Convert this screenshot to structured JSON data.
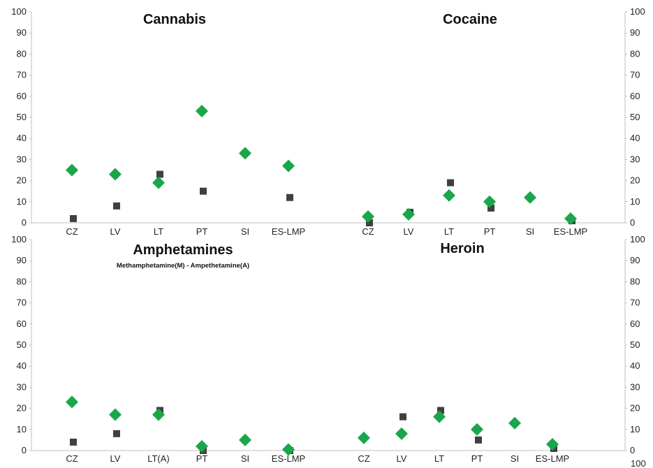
{
  "colors": {
    "series_diamond": "#1aa64a",
    "series_square": "#404040"
  },
  "chart_data": [
    {
      "type": "scatter",
      "title": "Cannabis",
      "subtitle": "",
      "categories": [
        "CZ",
        "LV",
        "LT",
        "PT",
        "SI",
        "ES-LMP"
      ],
      "ylim": [
        0,
        100
      ],
      "yticks": [
        0,
        10,
        20,
        30,
        40,
        50,
        60,
        70,
        80,
        90,
        100
      ],
      "axis_side": "left",
      "grid": false,
      "series": [
        {
          "marker": "diamond",
          "values": [
            25,
            23,
            19,
            53,
            33,
            27
          ]
        },
        {
          "marker": "square",
          "values": [
            2,
            8,
            23,
            15,
            null,
            12
          ]
        }
      ]
    },
    {
      "type": "scatter",
      "title": "Cocaine",
      "subtitle": "",
      "categories": [
        "CZ",
        "LV",
        "LT",
        "PT",
        "SI",
        "ES-LMP"
      ],
      "ylim": [
        0,
        100
      ],
      "yticks": [
        0,
        10,
        20,
        30,
        40,
        50,
        60,
        70,
        80,
        90,
        100
      ],
      "axis_side": "right",
      "grid": false,
      "series": [
        {
          "marker": "diamond",
          "values": [
            3,
            4,
            13,
            10,
            12,
            2
          ]
        },
        {
          "marker": "square",
          "values": [
            0,
            5,
            19,
            7,
            null,
            1
          ]
        }
      ]
    },
    {
      "type": "scatter",
      "title": "Amphetamines",
      "subtitle": "Methamphetamine(M) - Ampethetamine(A)",
      "categories": [
        "CZ",
        "LV",
        "LT(A)",
        "PT",
        "SI",
        "ES-LMP"
      ],
      "ylim": [
        0,
        100
      ],
      "yticks": [
        0,
        10,
        20,
        30,
        40,
        50,
        60,
        70,
        80,
        90,
        100
      ],
      "axis_side": "left",
      "grid": false,
      "series": [
        {
          "marker": "diamond",
          "values": [
            23,
            17,
            17,
            2,
            5,
            0.5
          ]
        },
        {
          "marker": "square",
          "values": [
            4,
            8,
            19,
            0,
            null,
            0
          ]
        }
      ]
    },
    {
      "type": "scatter",
      "title": "Heroin",
      "subtitle": "",
      "categories": [
        "CZ",
        "LV",
        "LT",
        "PT",
        "SI",
        "ES-LMP"
      ],
      "ylim": [
        0,
        100
      ],
      "yticks": [
        0,
        10,
        20,
        30,
        40,
        50,
        60,
        70,
        80,
        90,
        100
      ],
      "axis_side": "right",
      "grid": false,
      "series": [
        {
          "marker": "diamond",
          "values": [
            6,
            8,
            16,
            10,
            13,
            3
          ]
        },
        {
          "marker": "square",
          "values": [
            null,
            16,
            19,
            5,
            null,
            1
          ]
        }
      ]
    }
  ],
  "footer_tick": "100"
}
